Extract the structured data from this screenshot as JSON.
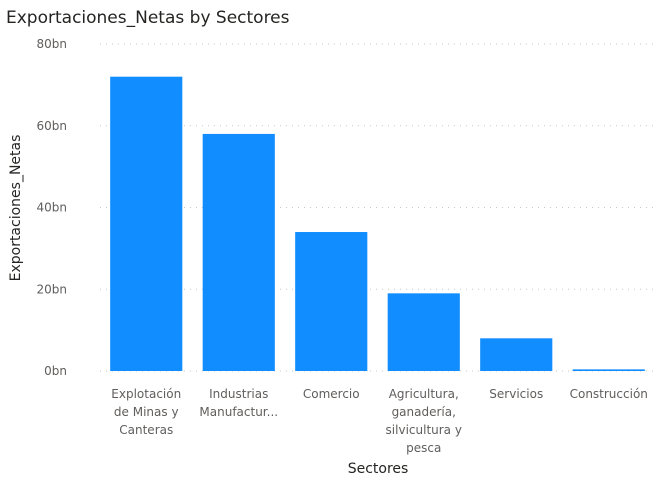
{
  "chart_data": {
    "type": "bar",
    "title": "Exportaciones_Netas by Sectores",
    "xlabel": "Sectores",
    "ylabel": "Exportaciones_Netas",
    "ylim": [
      0,
      80
    ],
    "yticks": [
      {
        "value": 0,
        "label": "0bn"
      },
      {
        "value": 20,
        "label": "20bn"
      },
      {
        "value": 40,
        "label": "40bn"
      },
      {
        "value": 60,
        "label": "60bn"
      },
      {
        "value": 80,
        "label": "80bn"
      }
    ],
    "grid": true,
    "categories": [
      [
        "Explotación",
        "de Minas y",
        "Canteras"
      ],
      [
        "Industrias",
        "Manufactur..."
      ],
      [
        "Comercio"
      ],
      [
        "Agricultura,",
        "ganadería,",
        "silvicultura y",
        "pesca"
      ],
      [
        "Servicios"
      ],
      [
        "Construcción"
      ]
    ],
    "values": [
      72,
      58,
      34,
      19,
      8,
      0.4
    ],
    "bar_color": "#118dff"
  }
}
